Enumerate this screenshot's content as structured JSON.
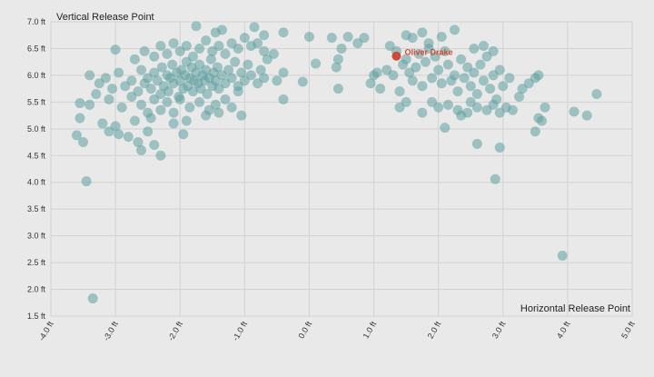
{
  "chart_data": {
    "type": "scatter",
    "ylabel": "Vertical Release Point",
    "xlabel": "Horizontal Release Point",
    "xlim": [
      -4.0,
      5.0
    ],
    "ylim": [
      1.5,
      7.0
    ],
    "x_ticks": [
      -4.0,
      -3.0,
      -2.0,
      -1.0,
      0.0,
      1.0,
      2.0,
      3.0,
      4.0,
      5.0
    ],
    "x_tick_labels": [
      "-4.0 ft",
      "-3.0 ft",
      "-2.0 ft",
      "-1.0 ft",
      "0.0 ft",
      "1.0 ft",
      "2.0 ft",
      "3.0 ft",
      "4.0 ft",
      "5.0 ft"
    ],
    "y_ticks": [
      1.5,
      2.0,
      2.5,
      3.0,
      3.5,
      4.0,
      4.5,
      5.0,
      5.5,
      6.0,
      6.5,
      7.0
    ],
    "y_tick_labels": [
      "1.5 ft",
      "2.0 ft",
      "2.5 ft",
      "3.0 ft",
      "3.5 ft",
      "4.0 ft",
      "4.5 ft",
      "5.0 ft",
      "5.5 ft",
      "6.0 ft",
      "6.5 ft",
      "7.0 ft"
    ],
    "grid": true,
    "colors": {
      "points": "#5f9ea0",
      "highlight": "#cc4b37",
      "background": "#e9e9e9",
      "grid": "#d2d2d2"
    },
    "highlight": {
      "name": "Oliver Drake",
      "x": 1.35,
      "y": 6.36
    },
    "series": [
      {
        "points": [
          [
            -3.35,
            1.83
          ],
          [
            -3.45,
            4.02
          ],
          [
            3.92,
            2.63
          ],
          [
            2.88,
            4.06
          ],
          [
            -3.5,
            4.75
          ],
          [
            -3.6,
            4.88
          ],
          [
            -2.3,
            4.5
          ],
          [
            -2.6,
            4.6
          ],
          [
            -2.65,
            4.75
          ],
          [
            -2.4,
            4.7
          ],
          [
            -3.1,
            4.95
          ],
          [
            -2.95,
            4.9
          ],
          [
            -2.8,
            4.85
          ],
          [
            -2.5,
            4.95
          ],
          [
            -1.95,
            4.9
          ],
          [
            -3.55,
            5.2
          ],
          [
            -3.2,
            5.1
          ],
          [
            -3.0,
            5.05
          ],
          [
            -2.7,
            5.15
          ],
          [
            -2.45,
            5.2
          ],
          [
            -2.1,
            5.1
          ],
          [
            -1.9,
            5.15
          ],
          [
            -1.6,
            5.25
          ],
          [
            -1.4,
            5.3
          ],
          [
            -1.05,
            5.25
          ],
          [
            -3.55,
            5.48
          ],
          [
            -3.4,
            5.45
          ],
          [
            -3.3,
            5.65
          ],
          [
            -3.1,
            5.55
          ],
          [
            -2.9,
            5.4
          ],
          [
            -2.75,
            5.6
          ],
          [
            -2.6,
            5.45
          ],
          [
            -2.5,
            5.3
          ],
          [
            -2.4,
            5.55
          ],
          [
            -2.3,
            5.35
          ],
          [
            -2.2,
            5.5
          ],
          [
            -2.1,
            5.3
          ],
          [
            -2.0,
            5.55
          ],
          [
            -1.85,
            5.4
          ],
          [
            -1.7,
            5.5
          ],
          [
            -1.55,
            5.35
          ],
          [
            -1.45,
            5.45
          ],
          [
            -1.3,
            5.55
          ],
          [
            -1.2,
            5.4
          ],
          [
            -1.1,
            5.7
          ],
          [
            -0.4,
            5.55
          ],
          [
            -3.4,
            6.0
          ],
          [
            -3.25,
            5.85
          ],
          [
            -3.15,
            5.95
          ],
          [
            -3.05,
            5.75
          ],
          [
            -2.95,
            6.05
          ],
          [
            -2.85,
            5.8
          ],
          [
            -2.75,
            5.9
          ],
          [
            -2.65,
            5.7
          ],
          [
            -2.6,
            6.1
          ],
          [
            -2.55,
            5.85
          ],
          [
            -2.5,
            5.95
          ],
          [
            -2.45,
            5.75
          ],
          [
            -2.4,
            6.05
          ],
          [
            -2.35,
            5.9
          ],
          [
            -2.3,
            5.65
          ],
          [
            -2.28,
            6.15
          ],
          [
            -2.25,
            5.8
          ],
          [
            -2.2,
            6.0
          ],
          [
            -2.18,
            5.7
          ],
          [
            -2.15,
            5.95
          ],
          [
            -2.12,
            6.2
          ],
          [
            -2.1,
            5.85
          ],
          [
            -2.05,
            6.05
          ],
          [
            -2.02,
            5.6
          ],
          [
            -2.0,
            5.9
          ],
          [
            -1.98,
            6.1
          ],
          [
            -1.95,
            5.75
          ],
          [
            -1.92,
            6.0
          ],
          [
            -1.9,
            6.25
          ],
          [
            -1.88,
            5.8
          ],
          [
            -1.85,
            5.95
          ],
          [
            -1.82,
            6.15
          ],
          [
            -1.8,
            5.7
          ],
          [
            -1.78,
            5.9
          ],
          [
            -1.75,
            6.05
          ],
          [
            -1.72,
            5.85
          ],
          [
            -1.7,
            6.2
          ],
          [
            -1.68,
            5.75
          ],
          [
            -1.65,
            6.0
          ],
          [
            -1.62,
            5.9
          ],
          [
            -1.6,
            6.1
          ],
          [
            -1.58,
            5.65
          ],
          [
            -1.55,
            5.95
          ],
          [
            -1.52,
            6.3
          ],
          [
            -1.5,
            5.8
          ],
          [
            -1.48,
            6.05
          ],
          [
            -1.45,
            5.9
          ],
          [
            -1.42,
            6.15
          ],
          [
            -1.4,
            5.75
          ],
          [
            -1.35,
            6.0
          ],
          [
            -1.3,
            5.85
          ],
          [
            -1.25,
            6.1
          ],
          [
            -1.2,
            5.95
          ],
          [
            -1.15,
            6.25
          ],
          [
            -1.1,
            5.8
          ],
          [
            -1.05,
            6.05
          ],
          [
            -1.0,
            5.9
          ],
          [
            -0.95,
            6.2
          ],
          [
            -0.9,
            6.0
          ],
          [
            -0.8,
            5.85
          ],
          [
            -0.75,
            6.1
          ],
          [
            -0.7,
            5.95
          ],
          [
            -0.65,
            6.3
          ],
          [
            -0.5,
            5.9
          ],
          [
            -0.4,
            6.05
          ],
          [
            -0.1,
            5.88
          ],
          [
            0.1,
            6.22
          ],
          [
            -3.0,
            6.48
          ],
          [
            -2.7,
            6.3
          ],
          [
            -2.55,
            6.45
          ],
          [
            -2.4,
            6.35
          ],
          [
            -2.3,
            6.55
          ],
          [
            -2.2,
            6.4
          ],
          [
            -2.1,
            6.6
          ],
          [
            -2.0,
            6.45
          ],
          [
            -1.9,
            6.55
          ],
          [
            -1.8,
            6.35
          ],
          [
            -1.7,
            6.5
          ],
          [
            -1.6,
            6.65
          ],
          [
            -1.5,
            6.45
          ],
          [
            -1.4,
            6.55
          ],
          [
            -1.3,
            6.4
          ],
          [
            -1.2,
            6.6
          ],
          [
            -1.1,
            6.5
          ],
          [
            -1.0,
            6.7
          ],
          [
            -0.9,
            6.55
          ],
          [
            -0.8,
            6.6
          ],
          [
            -0.7,
            6.45
          ],
          [
            -0.55,
            6.4
          ],
          [
            -0.4,
            6.8
          ],
          [
            -1.75,
            6.92
          ],
          [
            -1.45,
            6.8
          ],
          [
            -1.35,
            6.85
          ],
          [
            -0.85,
            6.9
          ],
          [
            -0.7,
            6.75
          ],
          [
            0.0,
            6.72
          ],
          [
            0.35,
            6.7
          ],
          [
            0.6,
            6.72
          ],
          [
            0.75,
            6.6
          ],
          [
            0.5,
            6.5
          ],
          [
            0.45,
            6.3
          ],
          [
            0.42,
            6.15
          ],
          [
            0.45,
            5.75
          ],
          [
            0.85,
            6.7
          ],
          [
            0.95,
            5.85
          ],
          [
            1.0,
            6.0
          ],
          [
            1.05,
            6.05
          ],
          [
            1.1,
            5.75
          ],
          [
            1.2,
            6.1
          ],
          [
            1.3,
            6.0
          ],
          [
            1.4,
            5.7
          ],
          [
            1.45,
            6.2
          ],
          [
            1.5,
            6.3
          ],
          [
            1.55,
            6.05
          ],
          [
            1.6,
            5.9
          ],
          [
            1.65,
            6.15
          ],
          [
            1.7,
            6.4
          ],
          [
            1.75,
            5.8
          ],
          [
            1.8,
            6.25
          ],
          [
            1.85,
            6.5
          ],
          [
            1.9,
            5.95
          ],
          [
            1.95,
            6.35
          ],
          [
            2.0,
            6.1
          ],
          [
            2.05,
            5.85
          ],
          [
            2.1,
            6.45
          ],
          [
            2.15,
            6.2
          ],
          [
            2.2,
            5.9
          ],
          [
            2.25,
            6.0
          ],
          [
            2.3,
            5.7
          ],
          [
            2.35,
            6.3
          ],
          [
            2.4,
            5.95
          ],
          [
            2.45,
            6.15
          ],
          [
            2.5,
            5.8
          ],
          [
            2.55,
            6.05
          ],
          [
            2.6,
            5.65
          ],
          [
            2.65,
            6.2
          ],
          [
            2.7,
            5.9
          ],
          [
            2.75,
            6.35
          ],
          [
            2.8,
            5.75
          ],
          [
            2.85,
            6.0
          ],
          [
            2.9,
            5.55
          ],
          [
            2.95,
            6.1
          ],
          [
            3.0,
            5.8
          ],
          [
            3.1,
            5.95
          ],
          [
            1.5,
            6.75
          ],
          [
            1.6,
            6.7
          ],
          [
            1.75,
            6.8
          ],
          [
            1.85,
            6.6
          ],
          [
            2.05,
            6.72
          ],
          [
            2.25,
            6.85
          ],
          [
            2.55,
            6.5
          ],
          [
            2.7,
            6.55
          ],
          [
            2.85,
            6.45
          ],
          [
            1.25,
            6.55
          ],
          [
            1.35,
            6.45
          ],
          [
            1.9,
            5.5
          ],
          [
            2.0,
            5.4
          ],
          [
            2.15,
            5.45
          ],
          [
            2.3,
            5.35
          ],
          [
            2.35,
            5.25
          ],
          [
            2.45,
            5.3
          ],
          [
            2.5,
            5.5
          ],
          [
            2.6,
            5.4
          ],
          [
            2.75,
            5.35
          ],
          [
            2.85,
            5.45
          ],
          [
            2.95,
            5.3
          ],
          [
            3.05,
            5.4
          ],
          [
            1.4,
            5.4
          ],
          [
            1.5,
            5.5
          ],
          [
            1.75,
            5.3
          ],
          [
            2.1,
            5.02
          ],
          [
            2.6,
            4.72
          ],
          [
            2.95,
            4.65
          ],
          [
            3.15,
            5.35
          ],
          [
            3.25,
            5.6
          ],
          [
            3.3,
            5.75
          ],
          [
            3.4,
            5.85
          ],
          [
            3.5,
            5.95
          ],
          [
            3.55,
            6.0
          ],
          [
            3.55,
            5.2
          ],
          [
            3.65,
            5.4
          ],
          [
            3.6,
            5.15
          ],
          [
            3.5,
            4.95
          ],
          [
            4.1,
            5.32
          ],
          [
            4.3,
            5.25
          ],
          [
            4.45,
            5.65
          ]
        ]
      }
    ]
  }
}
